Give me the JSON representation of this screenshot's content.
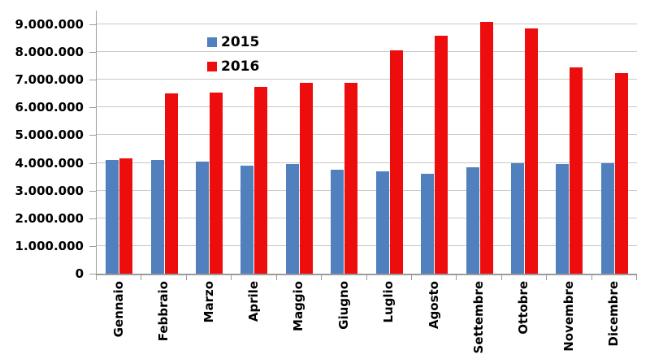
{
  "chart_data": {
    "type": "bar",
    "title": "",
    "xlabel": "",
    "ylabel": "",
    "categories": [
      "Gennaio",
      "Febbraio",
      "Marzo",
      "Aprile",
      "Maggio",
      "Giugno",
      "Luglio",
      "Agosto",
      "Settembre",
      "Ottobre",
      "Novembre",
      "Dicembre"
    ],
    "series": [
      {
        "name": "2015",
        "color": "#5081BE",
        "values": [
          4100000,
          4100000,
          4050000,
          3900000,
          3950000,
          3750000,
          3700000,
          3600000,
          3850000,
          4000000,
          3950000,
          4000000
        ]
      },
      {
        "name": "2016",
        "color": "#EE0D0D",
        "values": [
          4150000,
          6500000,
          6550000,
          6750000,
          6900000,
          6900000,
          8050000,
          8600000,
          9100000,
          8850000,
          7450000,
          7250000
        ]
      }
    ],
    "y_axis": {
      "min": 0,
      "max_visible_label": 9000000,
      "plot_top_value": 9500000,
      "major_unit": 1000000,
      "tick_values": [
        0,
        1000000,
        2000000,
        3000000,
        4000000,
        5000000,
        6000000,
        7000000,
        8000000,
        9000000
      ],
      "tick_labels": [
        "0",
        "1.000.000",
        "2.000.000",
        "3.000.000",
        "4.000.000",
        "5.000.000",
        "6.000.000",
        "7.000.000",
        "8.000.000",
        "9.000.000"
      ]
    },
    "grid": true,
    "legend_position": "inside-top-left"
  },
  "colors": {
    "background": "#FFFFFF",
    "gridline": "#C8C8C8",
    "axis": "#9B9B9B",
    "text": "#000000",
    "series_2015": "#5081BE",
    "series_2016": "#EE0D0D"
  }
}
